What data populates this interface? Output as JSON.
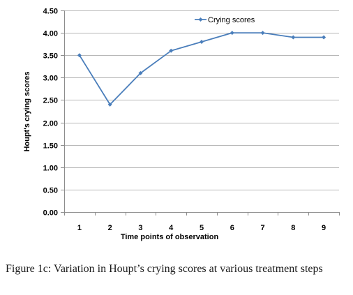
{
  "chart_data": {
    "type": "line",
    "xlabel": "Time points of observation",
    "ylabel": "Houpt's crying scores",
    "ylim": [
      0,
      4.5
    ],
    "yticks": [
      "0.00",
      "0.50",
      "1.00",
      "1.50",
      "2.00",
      "2.50",
      "3.00",
      "3.50",
      "4.00",
      "4.50"
    ],
    "categories": [
      "1",
      "2",
      "3",
      "4",
      "5",
      "6",
      "7",
      "8",
      "9"
    ],
    "series": [
      {
        "name": "Crying scores",
        "values": [
          3.5,
          2.4,
          3.1,
          3.6,
          3.8,
          4.0,
          4.0,
          3.9,
          3.9
        ],
        "color": "#4a7ebb"
      }
    ],
    "legend_position": "top-right",
    "grid": true,
    "gridline_color": "#b7b7b7"
  },
  "caption": "Figure 1c: Variation in Houpt’s crying scores at various treatment steps"
}
